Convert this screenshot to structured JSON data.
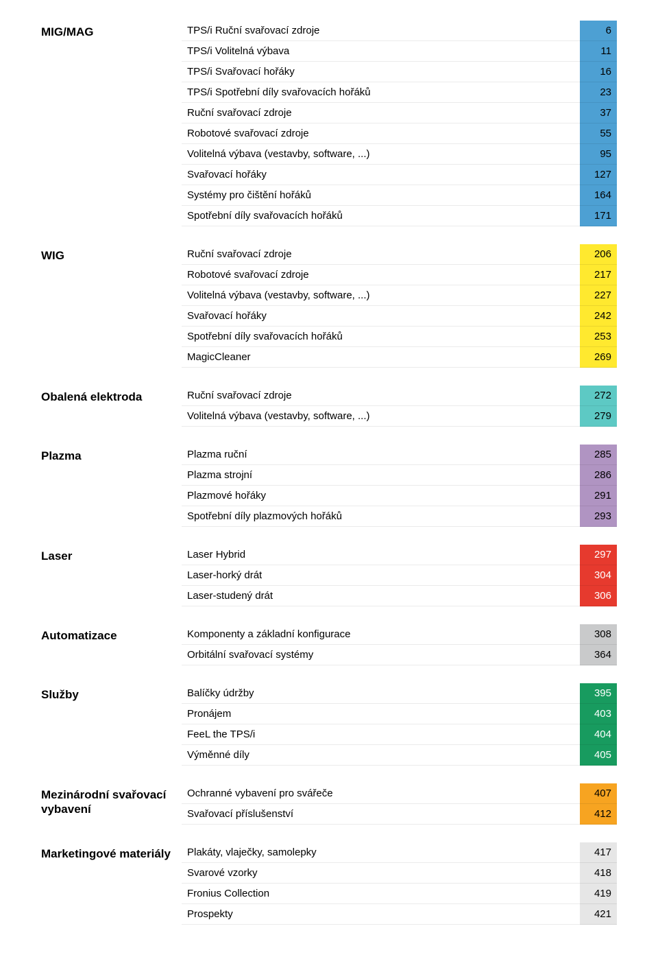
{
  "colors": {
    "blue": "#4da0d3",
    "yellow": "#ffe92f",
    "teal": "#5dc9c4",
    "purple": "#b094c2",
    "red": "#e63a2e",
    "grey": "#c9cacb",
    "green": "#189b5f",
    "orange": "#f7a421",
    "lightgrey": "#e6e6e6",
    "text_dark": "#000000",
    "text_light": "#ffffff"
  },
  "sections": [
    {
      "title": "MIG/MAG",
      "color": "blue",
      "rows": [
        {
          "label": "TPS/i Ruční svařovací zdroje",
          "page": "6"
        },
        {
          "label": "TPS/i Volitelná výbava",
          "page": "11"
        },
        {
          "label": "TPS/i Svařovací hořáky",
          "page": "16"
        },
        {
          "label": "TPS/i Spotřební díly svařovacích hořáků",
          "page": "23"
        },
        {
          "label": "Ruční svařovací zdroje",
          "page": "37"
        },
        {
          "label": "Robotové svařovací zdroje",
          "page": "55"
        },
        {
          "label": "Volitelná výbava (vestavby, software, ...)",
          "page": "95"
        },
        {
          "label": "Svařovací hořáky",
          "page": "127"
        },
        {
          "label": "Systémy pro čištění hořáků",
          "page": "164"
        },
        {
          "label": "Spotřební díly svařovacích hořáků",
          "page": "171"
        }
      ]
    },
    {
      "title": "WIG",
      "color": "yellow",
      "rows": [
        {
          "label": "Ruční svařovací zdroje",
          "page": "206"
        },
        {
          "label": "Robotové svařovací zdroje",
          "page": "217"
        },
        {
          "label": "Volitelná výbava (vestavby, software, ...)",
          "page": "227"
        },
        {
          "label": "Svařovací hořáky",
          "page": "242"
        },
        {
          "label": "Spotřební díly svařovacích hořáků",
          "page": "253"
        },
        {
          "label": "MagicCleaner",
          "page": "269"
        }
      ]
    },
    {
      "title": "Obalená elektroda",
      "color": "teal",
      "rows": [
        {
          "label": "Ruční svařovací zdroje",
          "page": "272"
        },
        {
          "label": "Volitelná výbava (vestavby, software, ...)",
          "page": "279"
        }
      ]
    },
    {
      "title": "Plazma",
      "color": "purple",
      "rows": [
        {
          "label": "Plazma ruční",
          "page": "285"
        },
        {
          "label": "Plazma strojní",
          "page": "286"
        },
        {
          "label": "Plazmové hořáky",
          "page": "291"
        },
        {
          "label": "Spotřební díly plazmových hořáků",
          "page": "293"
        }
      ]
    },
    {
      "title": "Laser",
      "color": "red",
      "rows": [
        {
          "label": "Laser Hybrid",
          "page": "297"
        },
        {
          "label": "Laser-horký drát",
          "page": "304"
        },
        {
          "label": "Laser-studený drát",
          "page": "306"
        }
      ]
    },
    {
      "title": "Automatizace",
      "color": "grey",
      "rows": [
        {
          "label": "Komponenty a základní konfigurace",
          "page": "308"
        },
        {
          "label": "Orbitální svařovací systémy",
          "page": "364"
        }
      ]
    },
    {
      "title": "Služby",
      "color": "green",
      "rows": [
        {
          "label": "Balíčky údržby",
          "page": "395"
        },
        {
          "label": "Pronájem",
          "page": "403"
        },
        {
          "label": "FeeL the TPS/i",
          "page": "404"
        },
        {
          "label": "Výměnné díly",
          "page": "405"
        }
      ]
    },
    {
      "title": "Mezinárodní svařovací vybavení",
      "color": "orange",
      "rows": [
        {
          "label": "Ochranné vybavení pro svářeče",
          "page": "407"
        },
        {
          "label": "Svařovací příslušenství",
          "page": "412"
        }
      ]
    },
    {
      "title": "Marketingové materiály",
      "color": "lightgrey",
      "rows": [
        {
          "label": "Plakáty, vlaječky, samolepky",
          "page": "417"
        },
        {
          "label": "Svarové vzorky",
          "page": "418"
        },
        {
          "label": "Fronius Collection",
          "page": "419"
        },
        {
          "label": "Prospekty",
          "page": "421"
        }
      ]
    }
  ]
}
